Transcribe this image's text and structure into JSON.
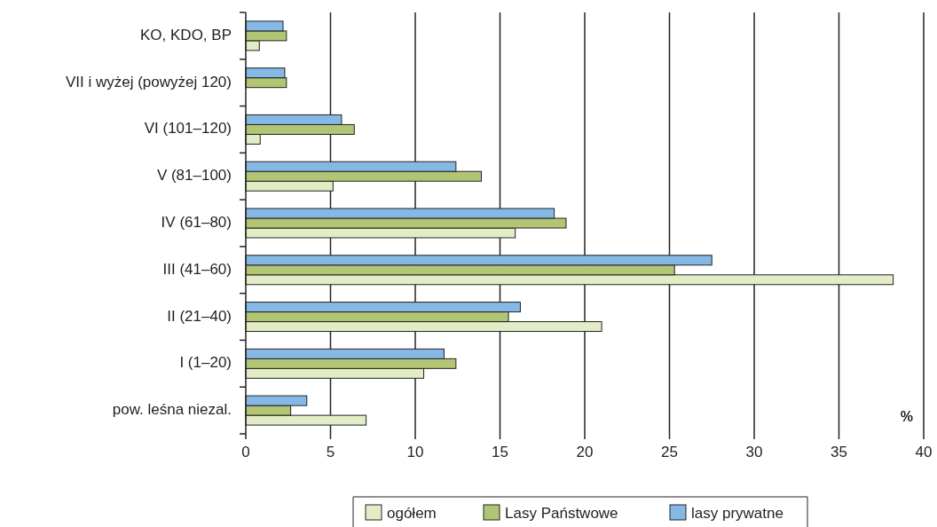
{
  "chart_data": {
    "type": "bar",
    "orientation": "horizontal",
    "categories": [
      "KO, KDO, BP",
      "VII i wyżej (powyżej 120)",
      "VI (101–120)",
      "V (81–100)",
      "IV (61–80)",
      "III (41–60)",
      "II (21–40)",
      "I (1–20)",
      "pow. leśna niezal."
    ],
    "series": [
      {
        "name": "ogółem",
        "color": "#e2edc6",
        "values": [
          0.8,
          null,
          0.85,
          5.15,
          15.9,
          38.2,
          21.0,
          10.5,
          7.1
        ]
      },
      {
        "name": "Lasy Państwowe",
        "color": "#b2c574",
        "values": [
          2.4,
          2.4,
          6.4,
          13.9,
          18.9,
          25.3,
          15.5,
          12.4,
          2.65
        ]
      },
      {
        "name": "lasy prywatne",
        "color": "#85b8e4",
        "values": [
          2.2,
          2.3,
          5.65,
          12.4,
          18.2,
          27.5,
          16.2,
          11.7,
          3.6
        ]
      }
    ],
    "xlim": [
      0,
      40
    ],
    "xticks": [
      0,
      5,
      10,
      15,
      20,
      25,
      30,
      35,
      40
    ],
    "grid": "x",
    "legend": "bottom",
    "annotations": [
      "%"
    ]
  }
}
